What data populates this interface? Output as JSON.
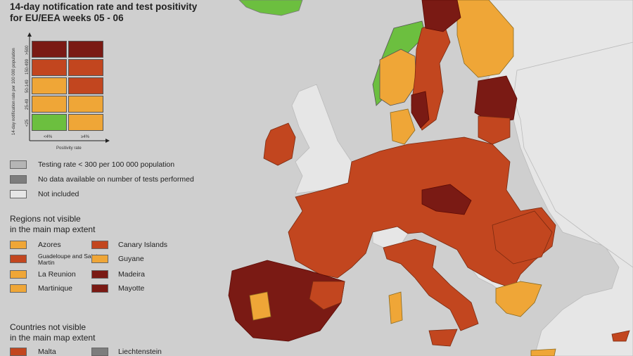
{
  "title_line1": "14-day notification rate and test positivity",
  "title_line2": "for EU/EEA weeks 05 - 06",
  "colors": {
    "sea": "#cfcfcf",
    "nonEU": "#e6e6e6",
    "darkred": "#7a1a14",
    "red": "#c2461f",
    "orange": "#efa637",
    "green": "#6cbf3f",
    "grey": "#b5b5b5",
    "darkgrey": "#7d7d7d"
  },
  "matrix": {
    "y_axis_title": "14-day notification rate per 100 000 population",
    "y_labels": [
      ">500",
      "150-499",
      "50-149",
      "25-49",
      "<25"
    ],
    "x_labels": [
      "<4%",
      "≥4%"
    ],
    "x_axis_title": "Positivity rate",
    "cells": [
      [
        "darkred",
        "darkred"
      ],
      [
        "red",
        "red"
      ],
      [
        "orange",
        "red"
      ],
      [
        "orange",
        "orange"
      ],
      [
        "green",
        "orange"
      ]
    ]
  },
  "status_legend": [
    {
      "label": "Testing rate < 300 per 100 000 population",
      "color": "grey"
    },
    {
      "label": "No data available on number of tests performed",
      "color": "darkgrey"
    },
    {
      "label": "Not included",
      "color": "nonEU"
    }
  ],
  "regions_heading_line1": "Regions not visible",
  "regions_heading_line2": "in the main map extent",
  "regions_left": [
    {
      "label": "Azores",
      "color": "orange"
    },
    {
      "label": "Guadeloupe and Saint Martin",
      "color": "red"
    },
    {
      "label": "La Reunion",
      "color": "orange"
    },
    {
      "label": "Martinique",
      "color": "orange"
    }
  ],
  "regions_right": [
    {
      "label": "Canary Islands",
      "color": "red"
    },
    {
      "label": "Guyane",
      "color": "orange"
    },
    {
      "label": "Madeira",
      "color": "darkred"
    },
    {
      "label": "Mayotte",
      "color": "darkred"
    }
  ],
  "countries_heading_line1": "Countries not visible",
  "countries_heading_line2": "in the main map extent",
  "countries": [
    {
      "label": "Malta",
      "color": "red"
    },
    {
      "label": "Liechtenstein",
      "color": "darkgrey"
    }
  ]
}
